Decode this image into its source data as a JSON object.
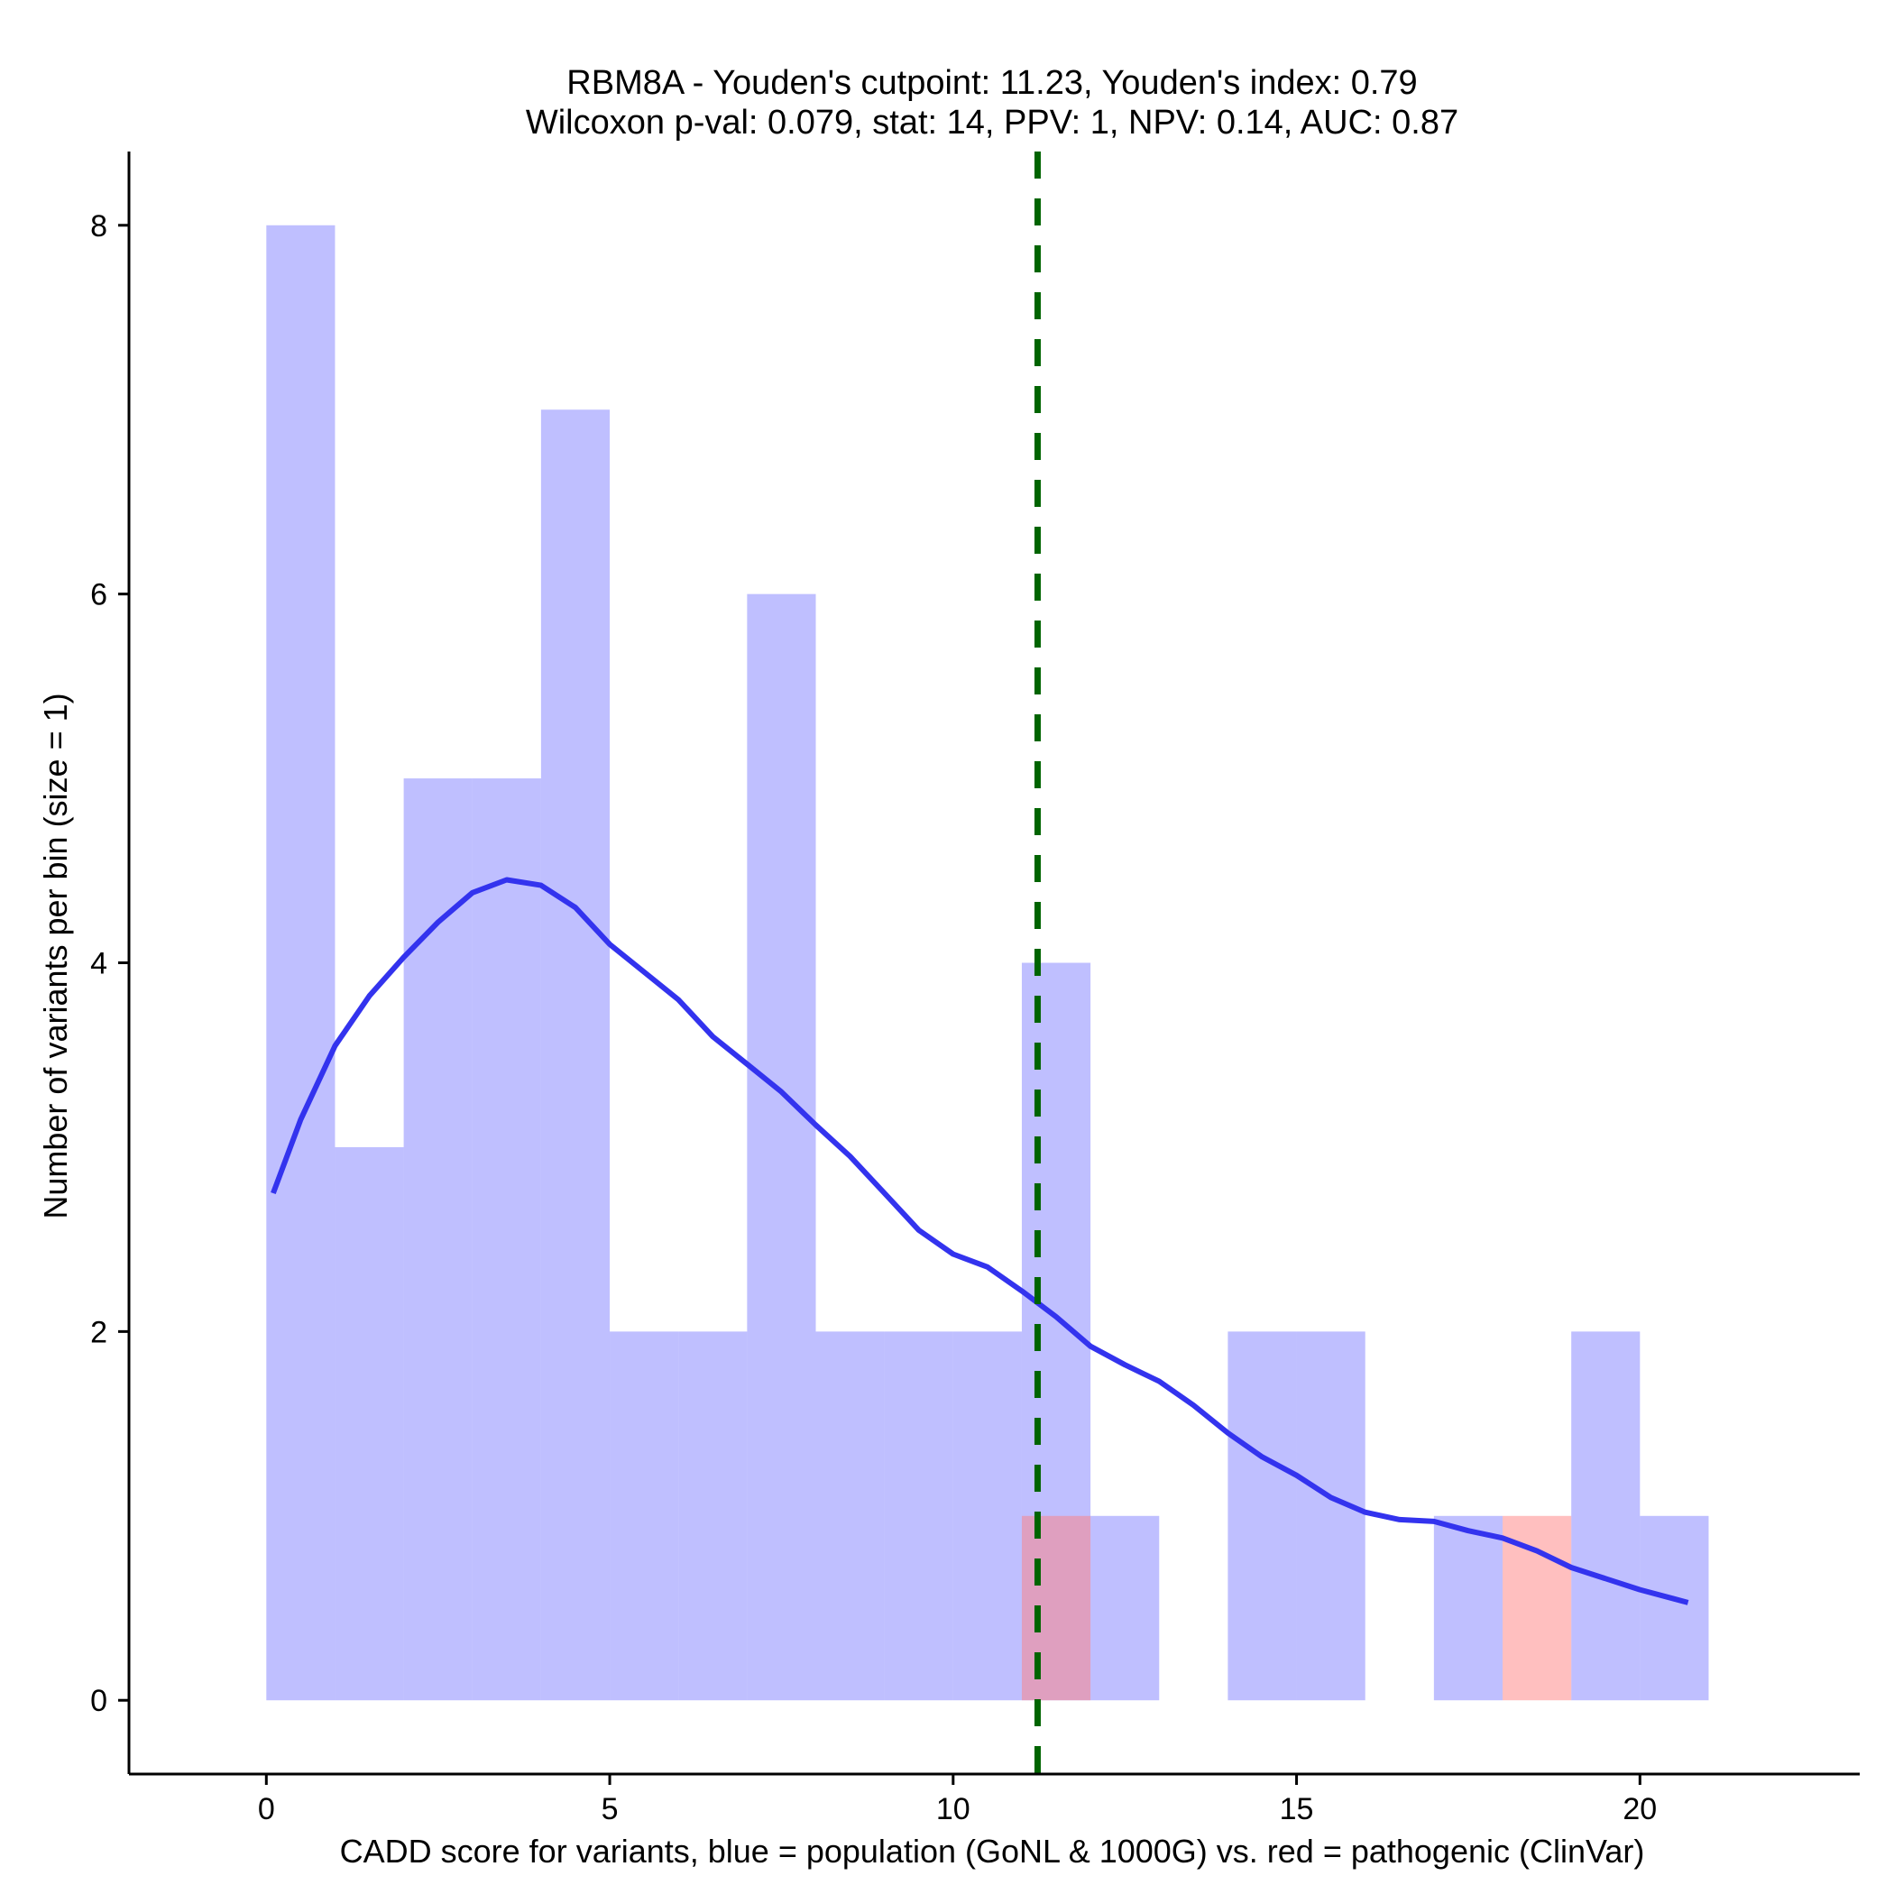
{
  "chart_data": {
    "type": "histogram",
    "title_line1": "RBM8A - Youden's cutpoint: 11.23, Youden's index: 0.79",
    "title_line2": "Wilcoxon p-val: 0.079, stat: 14, PPV: 1, NPV: 0.14, AUC: 0.87",
    "xlabel": "CADD score for variants, blue = population (GoNL & 1000G) vs. red = pathogenic (ClinVar)",
    "ylabel": "Number of variants per bin (size = 1)",
    "xlim": [
      -2,
      23.2
    ],
    "ylim": [
      -0.4,
      8.4
    ],
    "x_ticks": [
      0,
      5,
      10,
      15,
      20
    ],
    "y_ticks": [
      0,
      2,
      4,
      6,
      8
    ],
    "bin_size": 1,
    "series": [
      {
        "name": "population (GoNL & 1000G)",
        "color": "#8080ff",
        "opacity": 0.5,
        "bins": [
          {
            "start": 0,
            "count": 8
          },
          {
            "start": 1,
            "count": 3
          },
          {
            "start": 2,
            "count": 5
          },
          {
            "start": 3,
            "count": 5
          },
          {
            "start": 4,
            "count": 7
          },
          {
            "start": 5,
            "count": 2
          },
          {
            "start": 6,
            "count": 2
          },
          {
            "start": 7,
            "count": 6
          },
          {
            "start": 8,
            "count": 2
          },
          {
            "start": 9,
            "count": 2
          },
          {
            "start": 10,
            "count": 2
          },
          {
            "start": 11,
            "count": 4
          },
          {
            "start": 12,
            "count": 1
          },
          {
            "start": 13,
            "count": 0
          },
          {
            "start": 14,
            "count": 2
          },
          {
            "start": 15,
            "count": 2
          },
          {
            "start": 16,
            "count": 0
          },
          {
            "start": 17,
            "count": 1
          },
          {
            "start": 18,
            "count": 0
          },
          {
            "start": 19,
            "count": 2
          },
          {
            "start": 20,
            "count": 1
          }
        ]
      },
      {
        "name": "pathogenic (ClinVar)",
        "color": "#ff8080",
        "opacity": 0.5,
        "bins": [
          {
            "start": 11,
            "count": 1
          },
          {
            "start": 18,
            "count": 1
          }
        ]
      }
    ],
    "density_curve": {
      "name": "population density (scaled)",
      "color": "#3333ee",
      "x": [
        0.1,
        0.5,
        1,
        1.5,
        2,
        2.5,
        3,
        3.5,
        4,
        4.5,
        5,
        5.5,
        6,
        6.5,
        7,
        7.5,
        8,
        8.5,
        9,
        9.5,
        10,
        10.5,
        11,
        11.5,
        12,
        12.5,
        13,
        13.5,
        14,
        14.5,
        15,
        15.5,
        16,
        16.5,
        17,
        17.5,
        18,
        18.5,
        19,
        19.5,
        20,
        20.5,
        20.7
      ],
      "y": [
        2.75,
        3.15,
        3.55,
        3.82,
        4.03,
        4.22,
        4.38,
        4.45,
        4.42,
        4.3,
        4.1,
        3.95,
        3.8,
        3.6,
        3.45,
        3.3,
        3.12,
        2.95,
        2.75,
        2.55,
        2.42,
        2.35,
        2.22,
        2.08,
        1.92,
        1.82,
        1.73,
        1.6,
        1.45,
        1.32,
        1.22,
        1.1,
        1.02,
        0.98,
        0.97,
        0.92,
        0.88,
        0.81,
        0.72,
        0.66,
        0.6,
        0.55,
        0.53
      ]
    },
    "cutpoint": {
      "value": 11.23,
      "color": "#006400",
      "style": "dashed"
    }
  }
}
